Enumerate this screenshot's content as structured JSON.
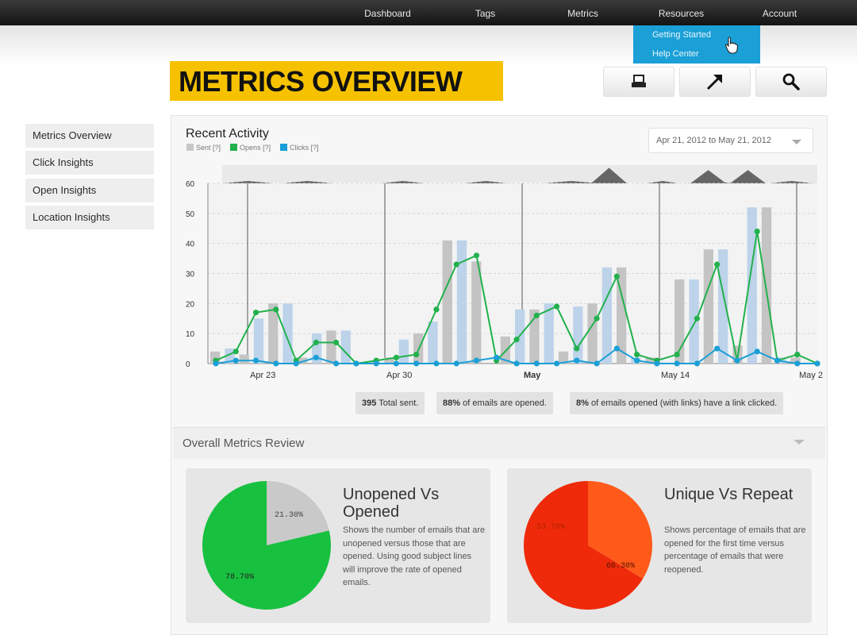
{
  "nav": {
    "items": [
      "Dashboard",
      "Tags",
      "Metrics",
      "Resources",
      "Account"
    ],
    "dropdown": [
      "Getting Started",
      "Help Center"
    ]
  },
  "page": {
    "title": "METRICS OVERVIEW"
  },
  "toolbar": {
    "icons": [
      "print-icon",
      "export-arrow-icon",
      "search-icon"
    ]
  },
  "sidebar": {
    "items": [
      {
        "label": "Metrics Overview"
      },
      {
        "label": "Click Insights"
      },
      {
        "label": "Open Insights"
      },
      {
        "label": "Location Insights"
      }
    ]
  },
  "activity": {
    "heading": "Recent Activity",
    "legend": [
      {
        "label": "Sent",
        "q": "[?]",
        "color": "#c8c8c8"
      },
      {
        "label": "Opens",
        "q": "[?]",
        "color": "#22b14c"
      },
      {
        "label": "Clicks",
        "q": "[?]",
        "color": "#1a9fd6"
      }
    ],
    "date_range": "Apr 21, 2012 to May 21, 2012"
  },
  "chart_data": {
    "type": "line",
    "y_ticks": [
      0,
      10,
      20,
      30,
      40,
      50,
      60
    ],
    "ylim": [
      0,
      60
    ],
    "x_labels": [
      "Apr 23",
      "Apr 30",
      "May",
      "May 14",
      "May 2"
    ],
    "series": [
      {
        "name": "Sent",
        "type": "bar",
        "color": "#c8c8c8",
        "values": [
          4,
          5,
          3,
          15,
          20,
          20,
          2,
          10,
          11,
          11,
          0,
          1,
          2,
          8,
          10,
          14,
          41,
          41,
          34,
          0,
          9,
          18,
          18,
          20,
          4,
          19,
          20,
          32,
          32,
          2,
          2,
          0,
          28,
          28,
          38,
          38,
          6,
          52,
          52,
          2,
          2,
          0
        ]
      },
      {
        "name": "Opens",
        "type": "line",
        "color": "#22b14c",
        "values": [
          1,
          4,
          17,
          18,
          1,
          7,
          7,
          0,
          1,
          2,
          3,
          18,
          33,
          36,
          1,
          8,
          16,
          19,
          5,
          15,
          29,
          3,
          1,
          3,
          15,
          33,
          1,
          44,
          1,
          3,
          0
        ]
      },
      {
        "name": "Clicks",
        "type": "line",
        "color": "#1a9fd6",
        "values": [
          0,
          1,
          1,
          0,
          0,
          2,
          0,
          0,
          0,
          0,
          0,
          0,
          0,
          1,
          2,
          0,
          0,
          0,
          1,
          0,
          5,
          1,
          0,
          0,
          0,
          5,
          1,
          4,
          1,
          0,
          0
        ]
      }
    ]
  },
  "stats": {
    "total_sent_num": "395",
    "total_sent_text": "Total sent.",
    "opened_pct": "88%",
    "opened_text": "of emails are opened.",
    "clicked_pct": "8%",
    "clicked_text": "of emails opened (with links) have a link clicked."
  },
  "review": {
    "label": "Overall Metrics Review"
  },
  "cards": [
    {
      "title": "Unopened Vs Opened",
      "desc": "Shows the number of emails that are unopened versus those that are opened. Using good subject lines will improve the rate of opened emails.",
      "slices": [
        {
          "label": "21.30%",
          "value": 21.3,
          "color": "#c9c9c9"
        },
        {
          "label": "78.70%",
          "value": 78.7,
          "color": "#18c040"
        }
      ]
    },
    {
      "title": "Unique Vs Repeat",
      "desc": "Shows percentage of emails that are opened for the first time versus percentage of emails that were reopened.",
      "slices": [
        {
          "label": "33.70%",
          "value": 33.7,
          "color": "#ff5a1a"
        },
        {
          "label": "66.30%",
          "value": 66.3,
          "color": "#ee2a0a"
        }
      ]
    }
  ]
}
